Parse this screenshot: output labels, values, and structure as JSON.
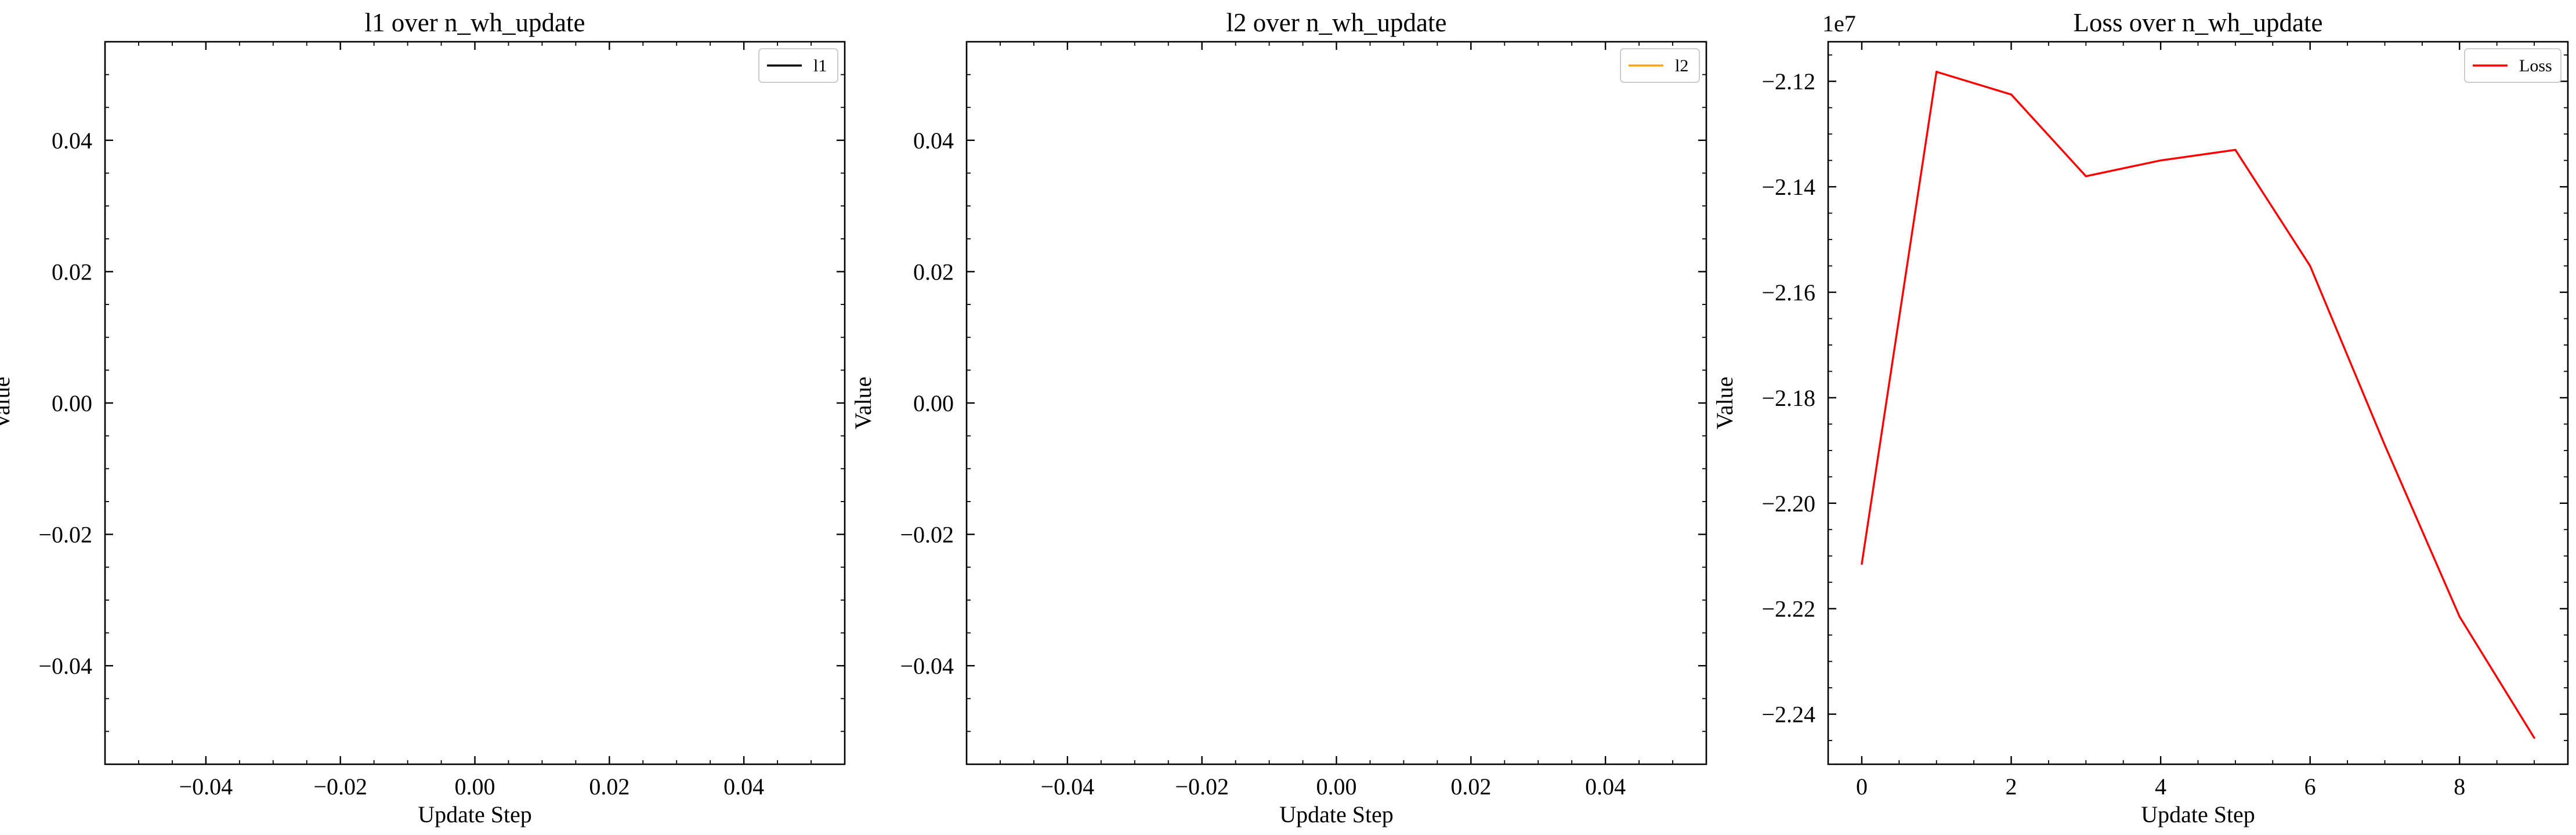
{
  "chart_data": [
    {
      "type": "line",
      "title": "l1 over n_wh_update",
      "xlabel": "Update Step",
      "ylabel": "Value",
      "xlim": [
        -0.055,
        0.055
      ],
      "ylim": [
        -0.055,
        0.055
      ],
      "xticks": [
        -0.04,
        -0.02,
        0.0,
        0.02,
        0.04
      ],
      "xtick_labels": [
        "−0.04",
        "−0.02",
        "0.00",
        "0.02",
        "0.04"
      ],
      "yticks": [
        0.04,
        0.02,
        0.0,
        -0.02,
        -0.04
      ],
      "ytick_labels": [
        "0.04",
        "0.02",
        "0.00",
        "−0.02",
        "−0.04"
      ],
      "offset_text": "",
      "legend_position": "top-right",
      "grid": false,
      "series": [
        {
          "name": "l1",
          "color": "#000000",
          "x": [],
          "y": []
        }
      ]
    },
    {
      "type": "line",
      "title": "l2 over n_wh_update",
      "xlabel": "Update Step",
      "ylabel": "Value",
      "xlim": [
        -0.055,
        0.055
      ],
      "ylim": [
        -0.055,
        0.055
      ],
      "xticks": [
        -0.04,
        -0.02,
        0.0,
        0.02,
        0.04
      ],
      "xtick_labels": [
        "−0.04",
        "−0.02",
        "0.00",
        "0.02",
        "0.04"
      ],
      "yticks": [
        0.04,
        0.02,
        0.0,
        -0.02,
        -0.04
      ],
      "ytick_labels": [
        "0.04",
        "0.02",
        "0.00",
        "−0.02",
        "−0.04"
      ],
      "offset_text": "",
      "legend_position": "top-right",
      "grid": false,
      "series": [
        {
          "name": "l2",
          "color": "#ffa500",
          "x": [],
          "y": []
        }
      ]
    },
    {
      "type": "line",
      "title": "Loss over n_wh_update",
      "xlabel": "Update Step",
      "ylabel": "Value",
      "xlim": [
        -0.45,
        9.45
      ],
      "ylim": [
        -2.2495,
        -2.1125
      ],
      "xticks": [
        0,
        2,
        4,
        6,
        8
      ],
      "xtick_labels": [
        "0",
        "2",
        "4",
        "6",
        "8"
      ],
      "yticks": [
        -2.12,
        -2.14,
        -2.16,
        -2.18,
        -2.2,
        -2.22,
        -2.24
      ],
      "ytick_labels": [
        "−2.12",
        "−2.14",
        "−2.16",
        "−2.18",
        "−2.20",
        "−2.22",
        "−2.24"
      ],
      "offset_text": "1e7",
      "legend_position": "top-right",
      "grid": false,
      "series": [
        {
          "name": "Loss",
          "color": "#ff0000",
          "x": [
            0,
            1,
            2,
            3,
            4,
            5,
            6,
            7,
            8,
            9
          ],
          "y": [
            -2.2115,
            -2.1182,
            -2.1225,
            -2.138,
            -2.135,
            -2.133,
            -2.155,
            -2.189,
            -2.2215,
            -2.2445
          ]
        }
      ]
    }
  ]
}
